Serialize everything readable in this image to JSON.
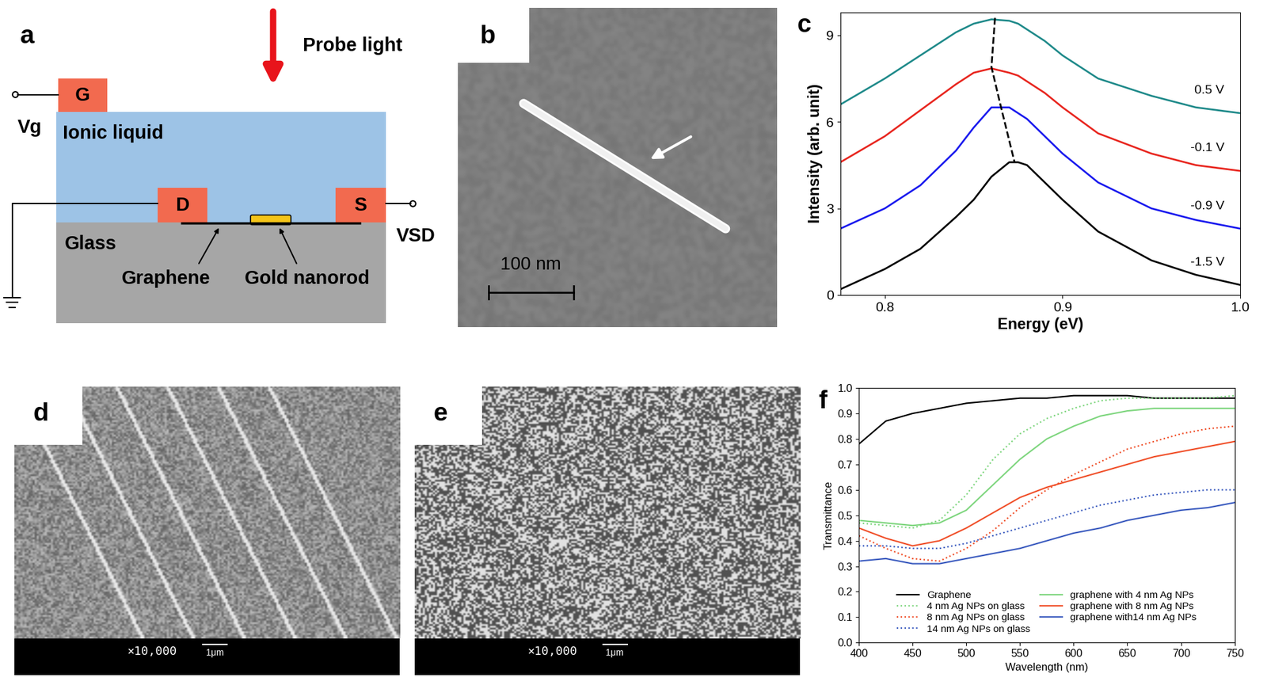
{
  "diagram": {
    "panel_label": "a",
    "probe": "Probe light",
    "gate": "G",
    "gate_voltage": "Vg",
    "electrolyte": "Ionic liquid",
    "drain": "D",
    "source": "S",
    "source_drain_voltage": "VSD",
    "substrate": "Glass",
    "graphene": "Graphene",
    "nanorod": "Gold nanorod"
  },
  "images": [
    {
      "panel_label": "b",
      "scale_bar": "100 nm"
    },
    {
      "panel_label": "d",
      "magnification": "×10,000",
      "scale_bar": "1μm"
    },
    {
      "panel_label": "e",
      "magnification": "×10,000",
      "scale_bar": "1μm"
    }
  ],
  "chart_data": [
    {
      "panel_label": "c",
      "type": "line",
      "xlabel": "Energy (eV)",
      "ylabel": "Intensity (arb. unit)",
      "x": [
        0.775,
        0.8,
        0.82,
        0.84,
        0.85,
        0.86,
        0.87,
        0.875,
        0.88,
        0.89,
        0.9,
        0.92,
        0.95,
        0.975,
        1.0
      ],
      "series": [
        {
          "name": "0.5 V",
          "color": "#1f8a8a",
          "line_style": "solid",
          "values": [
            6.6,
            7.5,
            8.3,
            9.1,
            9.4,
            9.55,
            9.5,
            9.4,
            9.2,
            8.8,
            8.3,
            7.5,
            6.9,
            6.5,
            6.3
          ]
        },
        {
          "name": "-0.1 V",
          "color": "#e8261f",
          "line_style": "solid",
          "values": [
            4.6,
            5.5,
            6.4,
            7.3,
            7.7,
            7.85,
            7.7,
            7.6,
            7.4,
            7.0,
            6.5,
            5.6,
            4.9,
            4.5,
            4.3
          ]
        },
        {
          "name": "-0.9 V",
          "color": "#1a1aee",
          "line_style": "solid",
          "values": [
            2.3,
            3.0,
            3.8,
            5.0,
            5.8,
            6.5,
            6.5,
            6.3,
            6.1,
            5.5,
            4.9,
            3.9,
            3.0,
            2.6,
            2.3
          ]
        },
        {
          "name": "-1.5 V",
          "color": "#000000",
          "line_style": "solid",
          "values": [
            0.2,
            0.9,
            1.6,
            2.7,
            3.3,
            4.1,
            4.6,
            4.6,
            4.5,
            3.9,
            3.3,
            2.2,
            1.2,
            0.7,
            0.35
          ]
        }
      ],
      "peak_trace": {
        "x": [
          0.862,
          0.86,
          0.865,
          0.873
        ],
        "y": [
          9.6,
          7.9,
          6.6,
          4.6
        ],
        "color": "#000000",
        "line_style": "dashed"
      },
      "xlim": [
        0.775,
        1.0
      ],
      "xticks": [
        0.8,
        0.9,
        1.0
      ],
      "ylim": [
        0,
        9.8
      ],
      "yticks": [
        0,
        3,
        6,
        9
      ]
    },
    {
      "panel_label": "f",
      "type": "line",
      "xlabel": "Wavelength (nm)",
      "ylabel": "Transmittance",
      "x": [
        400,
        425,
        450,
        475,
        500,
        525,
        550,
        575,
        600,
        625,
        650,
        675,
        700,
        725,
        750
      ],
      "series": [
        {
          "name": "Graphene",
          "color": "#000000",
          "line_style": "solid",
          "values": [
            0.78,
            0.87,
            0.9,
            0.92,
            0.94,
            0.95,
            0.96,
            0.96,
            0.97,
            0.97,
            0.97,
            0.96,
            0.96,
            0.96,
            0.96
          ]
        },
        {
          "name": "4 nm Ag NPs on glass",
          "color": "#7fd67f",
          "line_style": "dotted",
          "values": [
            0.47,
            0.46,
            0.45,
            0.48,
            0.58,
            0.72,
            0.82,
            0.88,
            0.92,
            0.95,
            0.96,
            0.96,
            0.96,
            0.96,
            0.97
          ]
        },
        {
          "name": "8 nm Ag NPs on glass",
          "color": "#f0502a",
          "line_style": "dotted",
          "values": [
            0.42,
            0.37,
            0.33,
            0.32,
            0.37,
            0.44,
            0.53,
            0.6,
            0.66,
            0.71,
            0.76,
            0.79,
            0.82,
            0.84,
            0.85
          ]
        },
        {
          "name": "14 nm Ag NPs on glass",
          "color": "#3b5bbf",
          "line_style": "dotted",
          "values": [
            0.38,
            0.38,
            0.37,
            0.37,
            0.39,
            0.42,
            0.45,
            0.48,
            0.51,
            0.54,
            0.56,
            0.58,
            0.59,
            0.6,
            0.6
          ]
        },
        {
          "name": "graphene with 4 nm Ag NPs",
          "color": "#7fd67f",
          "line_style": "solid",
          "values": [
            0.48,
            0.47,
            0.46,
            0.47,
            0.52,
            0.62,
            0.72,
            0.8,
            0.85,
            0.89,
            0.91,
            0.92,
            0.92,
            0.92,
            0.92
          ]
        },
        {
          "name": "graphene with 8 nm Ag NPs",
          "color": "#f0502a",
          "line_style": "solid",
          "values": [
            0.45,
            0.41,
            0.38,
            0.4,
            0.45,
            0.51,
            0.57,
            0.61,
            0.64,
            0.67,
            0.7,
            0.73,
            0.75,
            0.77,
            0.79
          ]
        },
        {
          "name": "graphene with14 nm Ag NPs",
          "color": "#3b5bbf",
          "line_style": "solid",
          "values": [
            0.32,
            0.33,
            0.31,
            0.31,
            0.33,
            0.35,
            0.37,
            0.4,
            0.43,
            0.45,
            0.48,
            0.5,
            0.52,
            0.53,
            0.55
          ]
        }
      ],
      "legend": "lower center",
      "xlim": [
        400,
        750
      ],
      "xticks": [
        400,
        450,
        500,
        550,
        600,
        650,
        700,
        750
      ],
      "ylim": [
        0.0,
        1.0
      ],
      "yticks": [
        0.0,
        0.1,
        0.2,
        0.3,
        0.4,
        0.5,
        0.6,
        0.7,
        0.8,
        0.9,
        1.0
      ]
    }
  ]
}
